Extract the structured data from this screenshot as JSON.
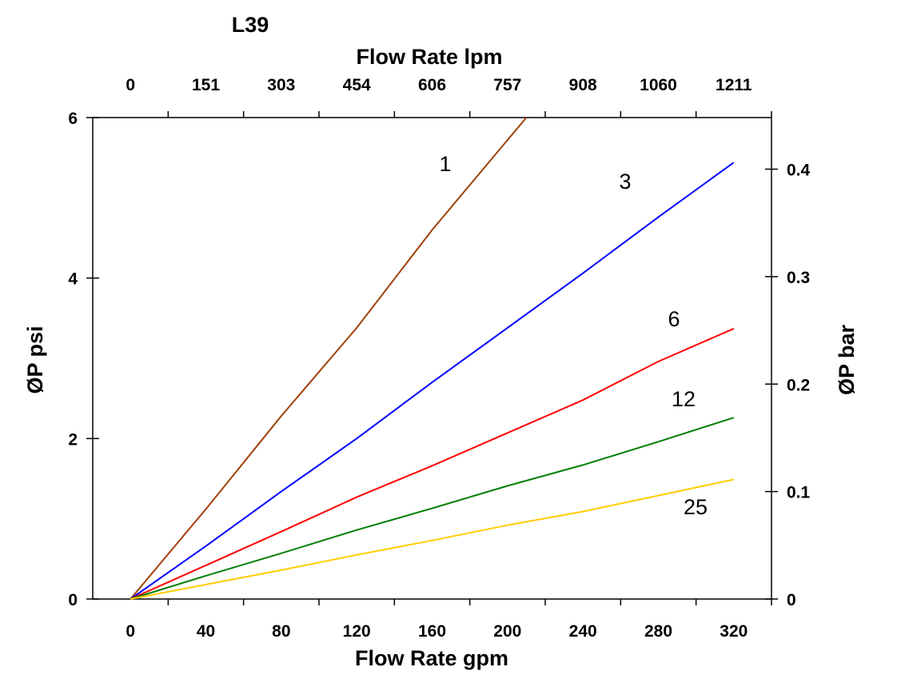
{
  "chart_data": {
    "type": "line",
    "title": "L39",
    "xlabel": "Flow Rate gpm",
    "x2label": "Flow Rate lpm",
    "ylabel": "ØP psi",
    "y2label": "ØP bar",
    "xlim": [
      -20,
      340
    ],
    "ylim": [
      0,
      6
    ],
    "y2lim": [
      0,
      0.448
    ],
    "grid": false,
    "x_ticks": [
      "0",
      "40",
      "80",
      "120",
      "160",
      "200",
      "240",
      "280",
      "320"
    ],
    "x2_ticks": [
      "0",
      "151",
      "303",
      "454",
      "606",
      "757",
      "908",
      "1060",
      "1211"
    ],
    "y_ticks": [
      "0",
      "2",
      "4",
      "6"
    ],
    "y2_ticks": [
      "0",
      "0.1",
      "0.2",
      "0.3",
      "0.4"
    ],
    "series": [
      {
        "name": "1",
        "color": "#a0400a",
        "x": [
          0,
          40,
          80,
          120,
          160,
          200,
          210
        ],
        "y": [
          0,
          1.12,
          2.28,
          3.38,
          4.6,
          5.72,
          6.0
        ]
      },
      {
        "name": "3",
        "color": "#0000ff",
        "x": [
          0,
          40,
          80,
          120,
          160,
          200,
          240,
          280,
          320
        ],
        "y": [
          0,
          0.66,
          1.34,
          2.0,
          2.7,
          3.38,
          4.06,
          4.76,
          5.44
        ]
      },
      {
        "name": "6",
        "color": "#ff0000",
        "x": [
          0,
          40,
          80,
          120,
          160,
          200,
          240,
          280,
          320
        ],
        "y": [
          0,
          0.42,
          0.84,
          1.27,
          1.66,
          2.07,
          2.48,
          2.96,
          3.37
        ]
      },
      {
        "name": "12",
        "color": "#008000",
        "x": [
          0,
          40,
          80,
          120,
          160,
          200,
          240,
          280,
          320
        ],
        "y": [
          0,
          0.29,
          0.57,
          0.86,
          1.13,
          1.41,
          1.67,
          1.96,
          2.26
        ]
      },
      {
        "name": "25",
        "color": "#ffcc00",
        "x": [
          0,
          40,
          80,
          120,
          160,
          200,
          240,
          280,
          320
        ],
        "y": [
          0,
          0.18,
          0.36,
          0.55,
          0.73,
          0.92,
          1.09,
          1.29,
          1.49
        ]
      }
    ]
  }
}
